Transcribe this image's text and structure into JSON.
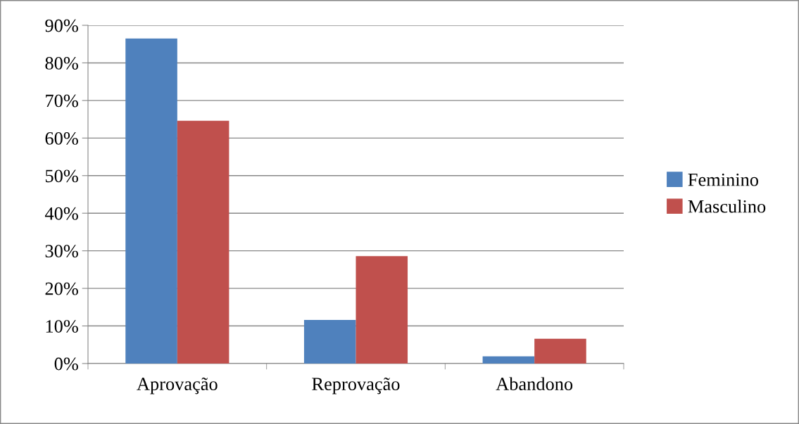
{
  "chart_data": {
    "type": "bar",
    "categories": [
      "Aprovação",
      "Reprovação",
      "Abandono"
    ],
    "series": [
      {
        "name": "Feminino",
        "color": "#4f81bd",
        "values": [
          86.5,
          11.6,
          1.9
        ]
      },
      {
        "name": "Masculino",
        "color": "#c0504d",
        "values": [
          64.6,
          28.6,
          6.6
        ]
      }
    ],
    "ylim": [
      0,
      90
    ],
    "yticks": [
      {
        "value": 0,
        "label": "0%"
      },
      {
        "value": 10,
        "label": "10%"
      },
      {
        "value": 20,
        "label": "20%"
      },
      {
        "value": 30,
        "label": "30%"
      },
      {
        "value": 40,
        "label": "40%"
      },
      {
        "value": 50,
        "label": "50%"
      },
      {
        "value": 60,
        "label": "60%"
      },
      {
        "value": 70,
        "label": "70%"
      },
      {
        "value": 80,
        "label": "80%"
      },
      {
        "value": 90,
        "label": "90%"
      }
    ],
    "grid": "y",
    "legend": "right"
  }
}
